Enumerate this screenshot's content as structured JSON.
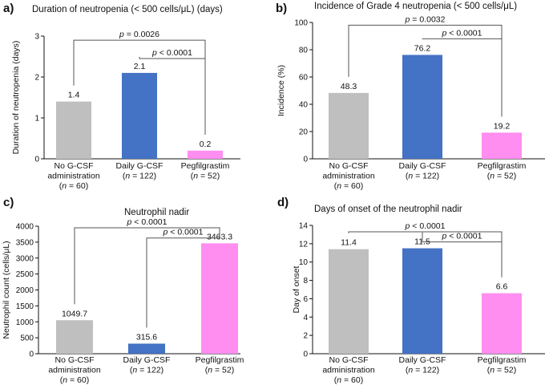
{
  "colors": {
    "no_gcsf": "#bfbfbf",
    "daily_gcsf": "#4472c4",
    "pegfilgrastim": "#ff8ef0",
    "axis": "#111111",
    "bracket": "#555555"
  },
  "chart_data": [
    {
      "type": "bar",
      "panel": "a)",
      "title": "Duration of neutropenia (< 500 cells/μL) (days)",
      "ylabel": "Duration of neutropenia (days)",
      "xlabel": "",
      "ylim": [
        0,
        3
      ],
      "yticks": [
        0,
        1,
        2,
        3
      ],
      "categories": [
        [
          "No G-CSF",
          "administration",
          "(n = 60)"
        ],
        [
          "Daily G-CSF",
          "(n = 122)"
        ],
        [
          "Pegfilgrastim",
          "(n = 52)"
        ]
      ],
      "values": [
        1.4,
        2.1,
        0.2
      ],
      "value_labels": [
        "1.4",
        "2.1",
        "0.2"
      ],
      "significance": [
        {
          "from": 0,
          "to": 2,
          "level": 2.9,
          "label": "p = 0.0026"
        },
        {
          "from": 1,
          "to": 2,
          "level": 2.45,
          "label": "p < 0.0001"
        }
      ]
    },
    {
      "type": "bar",
      "panel": "b)",
      "title": "Incidence of Grade 4 neutropenia (< 500 cells/μL)",
      "ylabel": "Incidence  (%)",
      "xlabel": "",
      "ylim": [
        0,
        100
      ],
      "yticks": [
        0,
        20,
        40,
        60,
        80,
        100
      ],
      "categories": [
        [
          "No G-CSF",
          "administration",
          "(n = 60)"
        ],
        [
          "Daily G-CSF",
          "(n = 122)"
        ],
        [
          "Pegfilgrastim",
          "(n = 52)"
        ]
      ],
      "values": [
        48.3,
        76.2,
        19.2
      ],
      "value_labels": [
        "48.3",
        "76.2",
        "19.2"
      ],
      "significance": [
        {
          "from": 0,
          "to": 2,
          "level": 98,
          "label": "p = 0.0032"
        },
        {
          "from": 1,
          "to": 2,
          "level": 88,
          "label": "p < 0.0001"
        }
      ]
    },
    {
      "type": "bar",
      "panel": "c)",
      "title": "Neutrophil nadir",
      "ylabel": "Neutrophil count (cells/μL)",
      "xlabel": "",
      "ylim": [
        0,
        4000
      ],
      "yticks": [
        0,
        500,
        1000,
        1500,
        2000,
        2500,
        3000,
        3500,
        4000
      ],
      "categories": [
        [
          "No G-CSF",
          "administration",
          "(n = 60)"
        ],
        [
          "Daily G-CSF",
          "(n = 122)"
        ],
        [
          "Pegfilgrastim",
          "(n = 52)"
        ]
      ],
      "values": [
        1049.7,
        315.6,
        3463.3
      ],
      "value_labels": [
        "1049.7",
        "315.6",
        "3463.3"
      ],
      "significance": [
        {
          "from": 0,
          "to": 2,
          "level": 3950,
          "label": "p < 0.0001"
        },
        {
          "from": 1,
          "to": 2,
          "level": 3630,
          "label": "p < 0.0001"
        }
      ]
    },
    {
      "type": "bar",
      "panel": "d)",
      "title": "Days of onset of the neutrophil nadir",
      "ylabel": "Day of onset",
      "xlabel": "",
      "ylim": [
        0,
        14
      ],
      "yticks": [
        0,
        2,
        4,
        6,
        8,
        10,
        12,
        14
      ],
      "categories": [
        [
          "No G-CSF",
          "administration",
          "(n = 60)"
        ],
        [
          "Daily G-CSF",
          "(n = 122)"
        ],
        [
          "Pegfilgrastim",
          "(n = 52)"
        ]
      ],
      "values": [
        11.4,
        11.5,
        6.6
      ],
      "value_labels": [
        "11.4",
        "11.5",
        "6.6"
      ],
      "significance": [
        {
          "from": 0,
          "to": 2,
          "level": 13.3,
          "label": "p < 0.0001"
        },
        {
          "from": 1,
          "to": 2,
          "level": 12.2,
          "label": "p < 0.0001"
        }
      ]
    }
  ]
}
